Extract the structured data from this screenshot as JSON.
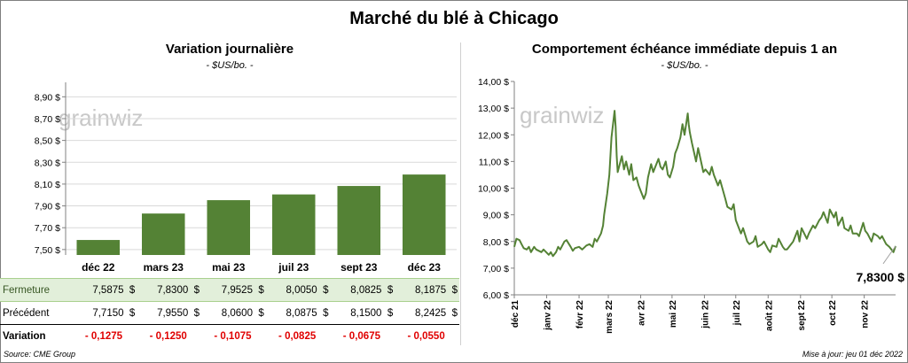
{
  "title": "Marché du blé à Chicago",
  "source": "Source: CME Group",
  "updated": "Mise à jour: jeu 01 déc 2022",
  "watermark": "grainwiz",
  "colors": {
    "bar": "#548235",
    "line": "#548235",
    "close_row": "#e2efda",
    "negative": "#e00000"
  },
  "chart_data": [
    {
      "type": "bar",
      "title": "Variation  journalière",
      "subtitle": "- $US/bo. -",
      "categories": [
        "déc 22",
        "mars 23",
        "mai 23",
        "juil 23",
        "sept 23",
        "déc 23"
      ],
      "values": [
        7.5875,
        7.83,
        7.9525,
        8.005,
        8.0825,
        8.1875
      ],
      "ylim": [
        7.45,
        9.0
      ],
      "yticks": [
        7.5,
        7.7,
        7.9,
        8.1,
        8.3,
        8.5,
        8.7,
        8.9
      ],
      "ytick_labels": [
        "7,50 $",
        "7,70 $",
        "7,90 $",
        "8,10 $",
        "8,30 $",
        "8,50 $",
        "8,70 $",
        "8,90 $"
      ],
      "table": {
        "rows": [
          {
            "label": "Fermeture",
            "values": [
              "7,5875",
              "7,8300",
              "7,9525",
              "8,0050",
              "8,0825",
              "8,1875"
            ],
            "suffix": "$"
          },
          {
            "label": "Précédent",
            "values": [
              "7,7150",
              "7,9550",
              "8,0600",
              "8,0875",
              "8,1500",
              "8,2425"
            ],
            "suffix": "$"
          },
          {
            "label": "Variation",
            "values": [
              "- 0,1275",
              "- 0,1250",
              "- 0,1075",
              "- 0,0825",
              "- 0,0675",
              "- 0,0550"
            ]
          }
        ]
      }
    },
    {
      "type": "line",
      "title": "Comportement  échéance  immédiate  depuis  1  an",
      "subtitle": "- $US/bo. -",
      "ylim": [
        6.0,
        14.0
      ],
      "yticks": [
        6,
        7,
        8,
        9,
        10,
        11,
        12,
        13,
        14
      ],
      "ytick_labels": [
        "6,00 $",
        "7,00 $",
        "8,00 $",
        "9,00 $",
        "10,00 $",
        "11,00 $",
        "12,00 $",
        "13,00 $",
        "14,00 $"
      ],
      "xlim": [
        "2021-12-01",
        "2022-12-01"
      ],
      "xtick_labels": [
        "déc 21",
        "janv 22",
        "févr 22",
        "mars 22",
        "avr 22",
        "mai 22",
        "juin 22",
        "juil 22",
        "août 22",
        "sept 22",
        "oct 22",
        "nov 22"
      ],
      "xtick_dates": [
        "2021-12-01",
        "2022-01-01",
        "2022-02-01",
        "2022-03-01",
        "2022-04-01",
        "2022-05-01",
        "2022-06-01",
        "2022-07-01",
        "2022-08-01",
        "2022-09-01",
        "2022-10-01",
        "2022-11-01"
      ],
      "last_value_label": "7,8300 $",
      "series": [
        {
          "x": [
            "2021-12-01",
            "2021-12-03",
            "2021-12-06",
            "2021-12-08",
            "2021-12-10",
            "2021-12-13",
            "2021-12-15",
            "2021-12-17",
            "2021-12-20",
            "2021-12-22",
            "2021-12-27",
            "2021-12-29",
            "2022-01-03",
            "2022-01-05",
            "2022-01-07",
            "2022-01-10",
            "2022-01-12",
            "2022-01-14",
            "2022-01-18",
            "2022-01-20",
            "2022-01-24",
            "2022-01-26",
            "2022-01-28",
            "2022-02-01",
            "2022-02-04",
            "2022-02-08",
            "2022-02-11",
            "2022-02-14",
            "2022-02-16",
            "2022-02-18",
            "2022-02-22",
            "2022-02-24",
            "2022-02-25",
            "2022-02-28",
            "2022-03-02",
            "2022-03-04",
            "2022-03-07",
            "2022-03-08",
            "2022-03-09",
            "2022-03-10",
            "2022-03-14",
            "2022-03-16",
            "2022-03-18",
            "2022-03-21",
            "2022-03-23",
            "2022-03-25",
            "2022-03-28",
            "2022-03-30",
            "2022-04-01",
            "2022-04-04",
            "2022-04-06",
            "2022-04-08",
            "2022-04-11",
            "2022-04-13",
            "2022-04-18",
            "2022-04-20",
            "2022-04-22",
            "2022-04-25",
            "2022-04-27",
            "2022-04-29",
            "2022-05-02",
            "2022-05-04",
            "2022-05-06",
            "2022-05-09",
            "2022-05-11",
            "2022-05-13",
            "2022-05-16",
            "2022-05-17",
            "2022-05-18",
            "2022-05-20",
            "2022-05-24",
            "2022-05-26",
            "2022-05-31",
            "2022-06-02",
            "2022-06-06",
            "2022-06-08",
            "2022-06-10",
            "2022-06-14",
            "2022-06-16",
            "2022-06-21",
            "2022-06-23",
            "2022-06-27",
            "2022-06-29",
            "2022-07-01",
            "2022-07-06",
            "2022-07-08",
            "2022-07-12",
            "2022-07-14",
            "2022-07-18",
            "2022-07-20",
            "2022-07-22",
            "2022-07-26",
            "2022-07-28",
            "2022-08-01",
            "2022-08-03",
            "2022-08-05",
            "2022-08-09",
            "2022-08-11",
            "2022-08-15",
            "2022-08-17",
            "2022-08-19",
            "2022-08-23",
            "2022-08-25",
            "2022-08-29",
            "2022-08-31",
            "2022-09-02",
            "2022-09-07",
            "2022-09-09",
            "2022-09-13",
            "2022-09-15",
            "2022-09-19",
            "2022-09-21",
            "2022-09-23",
            "2022-09-27",
            "2022-09-29",
            "2022-10-03",
            "2022-10-05",
            "2022-10-07",
            "2022-10-11",
            "2022-10-13",
            "2022-10-17",
            "2022-10-19",
            "2022-10-21",
            "2022-10-25",
            "2022-10-27",
            "2022-10-31",
            "2022-11-02",
            "2022-11-04",
            "2022-11-08",
            "2022-11-10",
            "2022-11-14",
            "2022-11-16",
            "2022-11-18",
            "2022-11-22",
            "2022-11-25",
            "2022-11-29",
            "2022-12-01"
          ],
          "y": [
            7.8,
            8.1,
            8.05,
            7.9,
            7.75,
            7.7,
            7.8,
            7.6,
            7.8,
            7.7,
            7.6,
            7.7,
            7.5,
            7.6,
            7.45,
            7.6,
            7.8,
            7.7,
            8.0,
            8.05,
            7.8,
            7.65,
            7.75,
            7.8,
            7.7,
            7.85,
            7.9,
            7.8,
            8.1,
            8.0,
            8.3,
            8.6,
            9.0,
            9.8,
            10.5,
            11.9,
            12.9,
            12.3,
            11.2,
            10.6,
            11.2,
            10.7,
            11.0,
            10.5,
            10.9,
            10.3,
            10.4,
            10.1,
            9.9,
            9.6,
            9.8,
            10.4,
            10.9,
            10.6,
            11.1,
            10.8,
            10.7,
            11.0,
            10.5,
            10.4,
            10.8,
            11.3,
            11.5,
            11.9,
            12.4,
            12.0,
            12.8,
            12.4,
            12.1,
            11.7,
            11.0,
            11.5,
            10.6,
            10.7,
            10.5,
            10.8,
            10.5,
            10.1,
            10.3,
            9.6,
            9.3,
            9.2,
            9.4,
            8.8,
            8.3,
            8.5,
            8.0,
            7.9,
            8.0,
            8.2,
            7.8,
            7.9,
            8.0,
            7.7,
            7.6,
            7.85,
            7.8,
            8.1,
            7.8,
            7.7,
            7.7,
            7.9,
            8.0,
            8.4,
            8.0,
            8.5,
            8.1,
            8.3,
            8.6,
            8.5,
            8.8,
            8.9,
            9.1,
            8.7,
            9.2,
            8.9,
            9.1,
            8.6,
            8.9,
            8.5,
            8.4,
            8.6,
            8.3,
            8.3,
            8.2,
            8.7,
            8.4,
            8.3,
            8.0,
            8.3,
            8.2,
            8.1,
            8.2,
            7.9,
            7.8,
            7.6,
            7.83
          ]
        }
      ]
    }
  ]
}
